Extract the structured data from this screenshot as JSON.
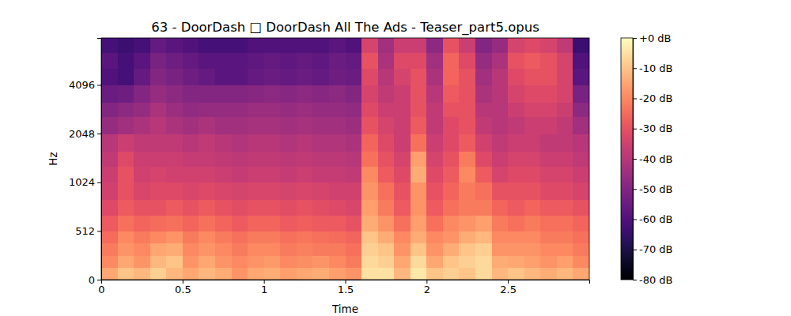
{
  "chart_data": {
    "type": "heatmap",
    "title": "63 - DoorDash □ DoorDash All The Ads - Teaser_part5.opus",
    "x_label": "Time",
    "y_label": "Hz",
    "xlim": [
      0,
      3.0
    ],
    "xticks": [
      0,
      0.5,
      1,
      1.5,
      2,
      2.5
    ],
    "ylim": [
      0,
      8000
    ],
    "yticks": [
      0,
      512,
      1024,
      2048,
      4096
    ],
    "log": "y",
    "x_edges": [
      0,
      0.1,
      0.2,
      0.3,
      0.4,
      0.5,
      0.6,
      0.7,
      0.8,
      0.9,
      1.0,
      1.1,
      1.2,
      1.3,
      1.4,
      1.5,
      1.6,
      1.7,
      1.8,
      1.9,
      2.0,
      2.1,
      2.2,
      2.3,
      2.4,
      2.5,
      2.6,
      2.7,
      2.8,
      2.9,
      3.0
    ],
    "y_edges": [
      0,
      128,
      256,
      384,
      512,
      640,
      800,
      1024,
      1280,
      1600,
      2048,
      2600,
      3200,
      4096,
      5200,
      6500,
      8000
    ],
    "cells": [
      [
        -15,
        -10,
        -12,
        -8,
        -12,
        -15,
        -12,
        -14,
        -18,
        -15,
        -14,
        -16,
        -15,
        -14,
        -16,
        -18,
        -5,
        -5,
        -12,
        -4,
        -10,
        -8,
        -10,
        -6,
        -12,
        -10,
        -12,
        -14,
        -12,
        -15
      ],
      [
        -20,
        -15,
        -18,
        -12,
        -10,
        -18,
        -15,
        -18,
        -20,
        -18,
        -17,
        -20,
        -19,
        -18,
        -20,
        -22,
        -6,
        -8,
        -15,
        -6,
        -15,
        -10,
        -8,
        -6,
        -14,
        -15,
        -16,
        -18,
        -16,
        -20
      ],
      [
        -22,
        -18,
        -20,
        -15,
        -14,
        -20,
        -18,
        -20,
        -22,
        -20,
        -20,
        -22,
        -21,
        -22,
        -22,
        -24,
        -8,
        -10,
        -18,
        -10,
        -18,
        -14,
        -10,
        -8,
        -18,
        -18,
        -18,
        -20,
        -20,
        -22
      ],
      [
        -25,
        -20,
        -22,
        -20,
        -18,
        -22,
        -20,
        -22,
        -24,
        -22,
        -22,
        -24,
        -23,
        -24,
        -25,
        -26,
        -10,
        -14,
        -20,
        -14,
        -20,
        -18,
        -14,
        -12,
        -20,
        -20,
        -20,
        -22,
        -22,
        -24
      ],
      [
        -28,
        -24,
        -26,
        -25,
        -24,
        -26,
        -24,
        -26,
        -28,
        -26,
        -26,
        -28,
        -27,
        -28,
        -28,
        -30,
        -14,
        -18,
        -24,
        -16,
        -24,
        -20,
        -18,
        -16,
        -22,
        -24,
        -22,
        -24,
        -24,
        -26
      ],
      [
        -32,
        -28,
        -30,
        -30,
        -28,
        -30,
        -28,
        -30,
        -31,
        -30,
        -30,
        -31,
        -30,
        -31,
        -32,
        -33,
        -16,
        -22,
        -28,
        -18,
        -28,
        -24,
        -22,
        -22,
        -26,
        -28,
        -26,
        -28,
        -28,
        -30
      ],
      [
        -35,
        -30,
        -33,
        -32,
        -32,
        -33,
        -32,
        -33,
        -34,
        -33,
        -33,
        -34,
        -33,
        -34,
        -35,
        -35,
        -18,
        -24,
        -30,
        -18,
        -30,
        -26,
        -22,
        -24,
        -30,
        -30,
        -30,
        -32,
        -32,
        -34
      ],
      [
        -36,
        -30,
        -35,
        -34,
        -35,
        -35,
        -35,
        -36,
        -37,
        -36,
        -36,
        -37,
        -36,
        -37,
        -37,
        -38,
        -20,
        -28,
        -32,
        -14,
        -32,
        -28,
        -20,
        -28,
        -34,
        -32,
        -32,
        -34,
        -34,
        -36
      ],
      [
        -38,
        -32,
        -36,
        -36,
        -36,
        -37,
        -37,
        -38,
        -39,
        -38,
        -38,
        -39,
        -38,
        -39,
        -39,
        -40,
        -24,
        -30,
        -34,
        -16,
        -34,
        -30,
        -22,
        -32,
        -36,
        -34,
        -34,
        -36,
        -36,
        -38
      ],
      [
        -40,
        -36,
        -38,
        -38,
        -38,
        -40,
        -38,
        -40,
        -41,
        -40,
        -40,
        -41,
        -40,
        -41,
        -41,
        -42,
        -26,
        -32,
        -36,
        -24,
        -36,
        -32,
        -28,
        -35,
        -38,
        -36,
        -36,
        -38,
        -38,
        -40
      ],
      [
        -46,
        -44,
        -42,
        -40,
        -42,
        -44,
        -42,
        -44,
        -44,
        -43,
        -43,
        -44,
        -43,
        -44,
        -44,
        -45,
        -30,
        -34,
        -36,
        -28,
        -38,
        -32,
        -30,
        -38,
        -40,
        -38,
        -36,
        -36,
        -38,
        -44
      ],
      [
        -50,
        -48,
        -46,
        -42,
        -45,
        -47,
        -46,
        -46,
        -46,
        -45,
        -45,
        -46,
        -45,
        -46,
        -46,
        -47,
        -32,
        -36,
        -36,
        -30,
        -38,
        -30,
        -30,
        -40,
        -40,
        -36,
        -34,
        -34,
        -36,
        -48
      ],
      [
        -55,
        -54,
        -50,
        -46,
        -48,
        -50,
        -50,
        -50,
        -50,
        -49,
        -48,
        -49,
        -48,
        -49,
        -48,
        -50,
        -34,
        -38,
        -36,
        -30,
        -40,
        -28,
        -30,
        -42,
        -40,
        -34,
        -32,
        -32,
        -34,
        -52
      ],
      [
        -60,
        -62,
        -56,
        -50,
        -52,
        -54,
        -56,
        -58,
        -58,
        -56,
        -55,
        -56,
        -55,
        -56,
        -54,
        -55,
        -32,
        -40,
        -34,
        -30,
        -42,
        -26,
        -30,
        -44,
        -40,
        -32,
        -30,
        -30,
        -34,
        -58
      ],
      [
        -58,
        -62,
        -58,
        -52,
        -54,
        -56,
        -58,
        -58,
        -58,
        -57,
        -56,
        -57,
        -56,
        -57,
        -55,
        -56,
        -30,
        -42,
        -32,
        -32,
        -44,
        -26,
        -32,
        -46,
        -42,
        -30,
        -28,
        -30,
        -34,
        -60
      ],
      [
        -62,
        -64,
        -62,
        -56,
        -58,
        -60,
        -62,
        -62,
        -62,
        -60,
        -60,
        -60,
        -60,
        -60,
        -58,
        -60,
        -34,
        -44,
        -36,
        -36,
        -48,
        -30,
        -36,
        -50,
        -46,
        -34,
        -32,
        -34,
        -38,
        -64
      ]
    ],
    "colorbar_lim": [
      -80,
      0
    ],
    "colorbar_ticks": [
      {
        "value": 0,
        "label": "+0 dB"
      },
      {
        "value": -10,
        "label": "-10 dB"
      },
      {
        "value": -20,
        "label": "-20 dB"
      },
      {
        "value": -30,
        "label": "-30 dB"
      },
      {
        "value": -40,
        "label": "-40 dB"
      },
      {
        "value": -50,
        "label": "-50 dB"
      },
      {
        "value": -60,
        "label": "-60 dB"
      },
      {
        "value": -70,
        "label": "-70 dB"
      },
      {
        "value": -80,
        "label": "-80 dB"
      }
    ]
  }
}
